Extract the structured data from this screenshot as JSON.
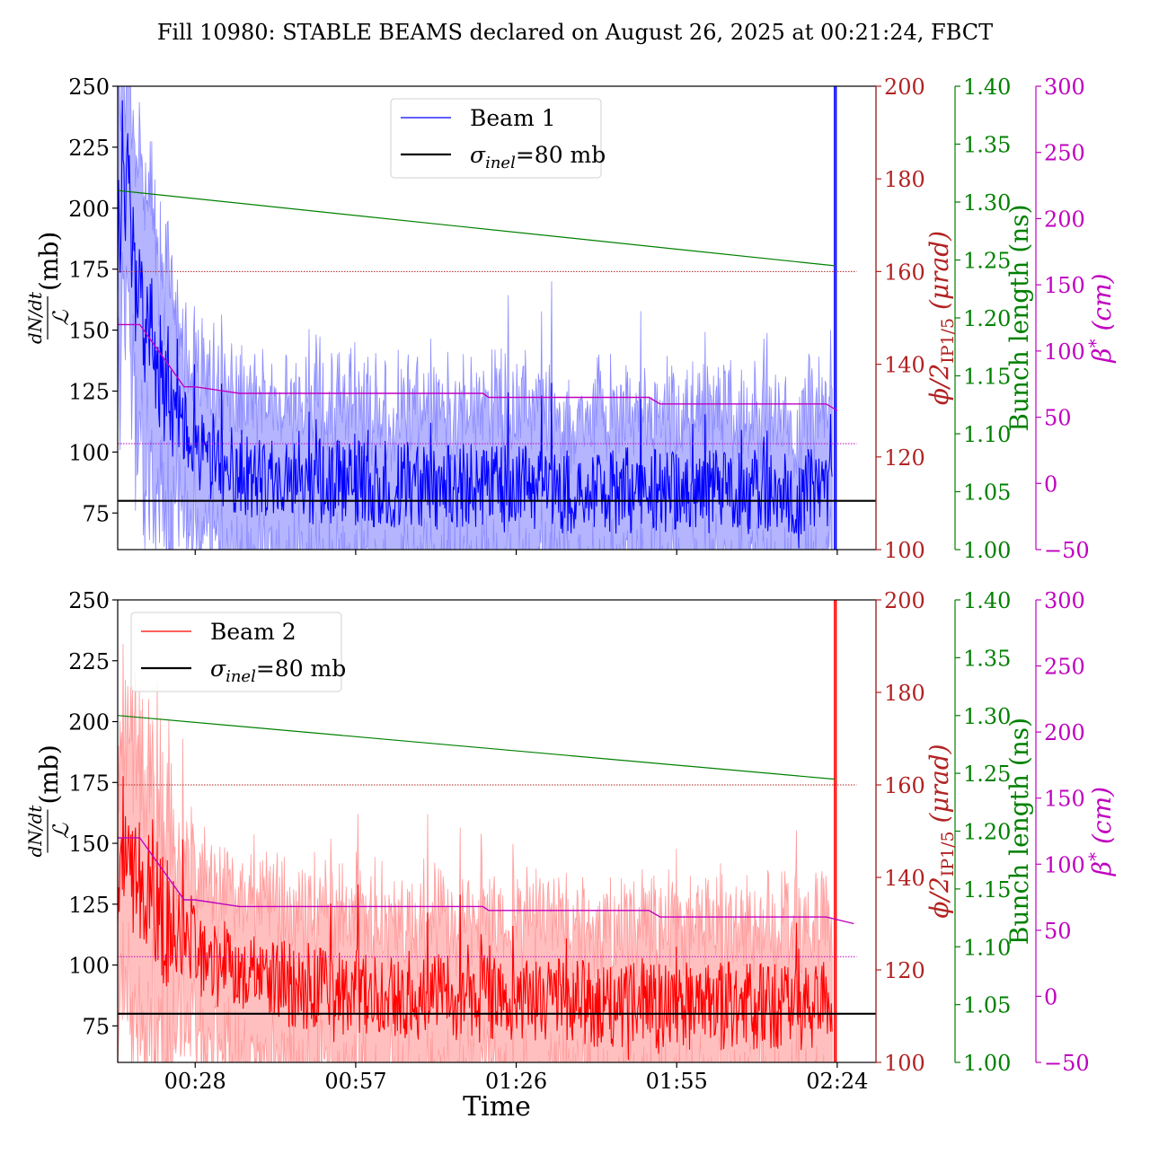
{
  "title": "Fill 10980: STABLE BEAMS declared on August 26, 2025 at 00:21:24, FBCT",
  "x_axis": {
    "label": "Time",
    "ticks": [
      "00:28",
      "00:57",
      "01:26",
      "01:55",
      "02:24"
    ],
    "tick_minutes": [
      28,
      57,
      86,
      115,
      144
    ],
    "range_minutes": [
      14,
      151
    ]
  },
  "axis_labels": {
    "left_numerator": "dN/dt",
    "left_denominator": "ℒ",
    "left_unit": "(mb)",
    "red_main": "ϕ/2",
    "red_sub": "IP1/5",
    "red_unit": "(μrad)",
    "green": "Bunch length (ns)",
    "magenta_main": "β",
    "magenta_sup": "*",
    "magenta_unit": "(cm)"
  },
  "y_axes": {
    "left": {
      "range": [
        60,
        250
      ],
      "ticks": [
        "75",
        "100",
        "125",
        "150",
        "175",
        "200",
        "225",
        "250"
      ]
    },
    "red": {
      "range": [
        100,
        200
      ],
      "ticks": [
        "100",
        "120",
        "140",
        "160",
        "180",
        "200"
      ]
    },
    "green": {
      "range": [
        1.0,
        1.4
      ],
      "ticks": [
        "1.00",
        "1.05",
        "1.10",
        "1.15",
        "1.20",
        "1.25",
        "1.30",
        "1.35",
        "1.40"
      ]
    },
    "magenta": {
      "range": [
        -50,
        300
      ],
      "ticks": [
        "−50",
        "0",
        "50",
        "100",
        "150",
        "200",
        "250",
        "300"
      ]
    }
  },
  "colors": {
    "beam1": "#0000ff",
    "beam1_band": "#8c8cff",
    "beam2": "#ff0000",
    "beam2_band": "#ff9c9c",
    "sigma": "#000000",
    "red_axis": "#b22222",
    "green_axis": "#008000",
    "magenta_axis": "#c000c0"
  },
  "chart_data": [
    {
      "type": "line",
      "panel": "top",
      "legend": {
        "position": "upper center",
        "entries": [
          {
            "label": "Beam 1",
            "color": "#0000ff"
          },
          {
            "label_main": "σ",
            "label_sub": "inel",
            "label_tail": "=80 mb",
            "color": "#000000"
          }
        ]
      },
      "sigma_inel_mb": 80,
      "crossing_angle_urad": 160,
      "beta_star_cm_dotted": 30,
      "series": [
        {
          "name": "Beam 1",
          "axis": "left",
          "mean_points": [
            [
              14,
              182
            ],
            [
              15,
              225
            ],
            [
              16,
              200
            ],
            [
              17,
              170
            ],
            [
              18,
              158
            ],
            [
              20,
              145
            ],
            [
              22,
              130
            ],
            [
              24,
              118
            ],
            [
              27,
              105
            ],
            [
              30,
              98
            ],
            [
              35,
              92
            ],
            [
              40,
              90
            ],
            [
              50,
              88
            ],
            [
              60,
              87
            ],
            [
              80,
              85
            ],
            [
              100,
              84
            ],
            [
              120,
              84
            ],
            [
              140,
              84
            ],
            [
              143,
              85
            ]
          ],
          "spike_minute": 143.5,
          "end_minute": 143.8
        },
        {
          "axis": "green",
          "x": [
            14,
            143.5
          ],
          "y": [
            1.31,
            1.245
          ]
        },
        {
          "axis": "magenta",
          "x": [
            14,
            18,
            26,
            28,
            36,
            80,
            81,
            110,
            112,
            142,
            144
          ],
          "y": [
            120,
            120,
            73,
            73,
            68,
            68,
            65,
            65,
            60,
            60,
            55
          ]
        }
      ]
    },
    {
      "type": "line",
      "panel": "bottom",
      "legend": {
        "position": "upper left",
        "entries": [
          {
            "label": "Beam 2",
            "color": "#ff0000"
          },
          {
            "label_main": "σ",
            "label_sub": "inel",
            "label_tail": "=80 mb",
            "color": "#000000"
          }
        ]
      },
      "sigma_inel_mb": 80,
      "crossing_angle_urad": 160,
      "beta_star_cm_dotted": 30,
      "series": [
        {
          "name": "Beam 2",
          "axis": "left",
          "mean_points": [
            [
              14,
              115
            ],
            [
              15,
              150
            ],
            [
              16,
              140
            ],
            [
              18,
              135
            ],
            [
              20,
              130
            ],
            [
              22,
              122
            ],
            [
              25,
              112
            ],
            [
              30,
              102
            ],
            [
              35,
              96
            ],
            [
              45,
              92
            ],
            [
              60,
              88
            ],
            [
              80,
              86
            ],
            [
              100,
              84
            ],
            [
              120,
              83
            ],
            [
              140,
              83
            ],
            [
              143,
              84
            ]
          ],
          "spike_minute": 143.5,
          "end_minute": 143.8
        },
        {
          "axis": "green",
          "x": [
            14,
            143.5
          ],
          "y": [
            1.3,
            1.245
          ]
        },
        {
          "axis": "magenta",
          "x": [
            14,
            18,
            26,
            28,
            36,
            80,
            81,
            110,
            112,
            142,
            147
          ],
          "y": [
            120,
            120,
            73,
            73,
            68,
            68,
            65,
            65,
            60,
            60,
            55
          ]
        }
      ]
    }
  ]
}
